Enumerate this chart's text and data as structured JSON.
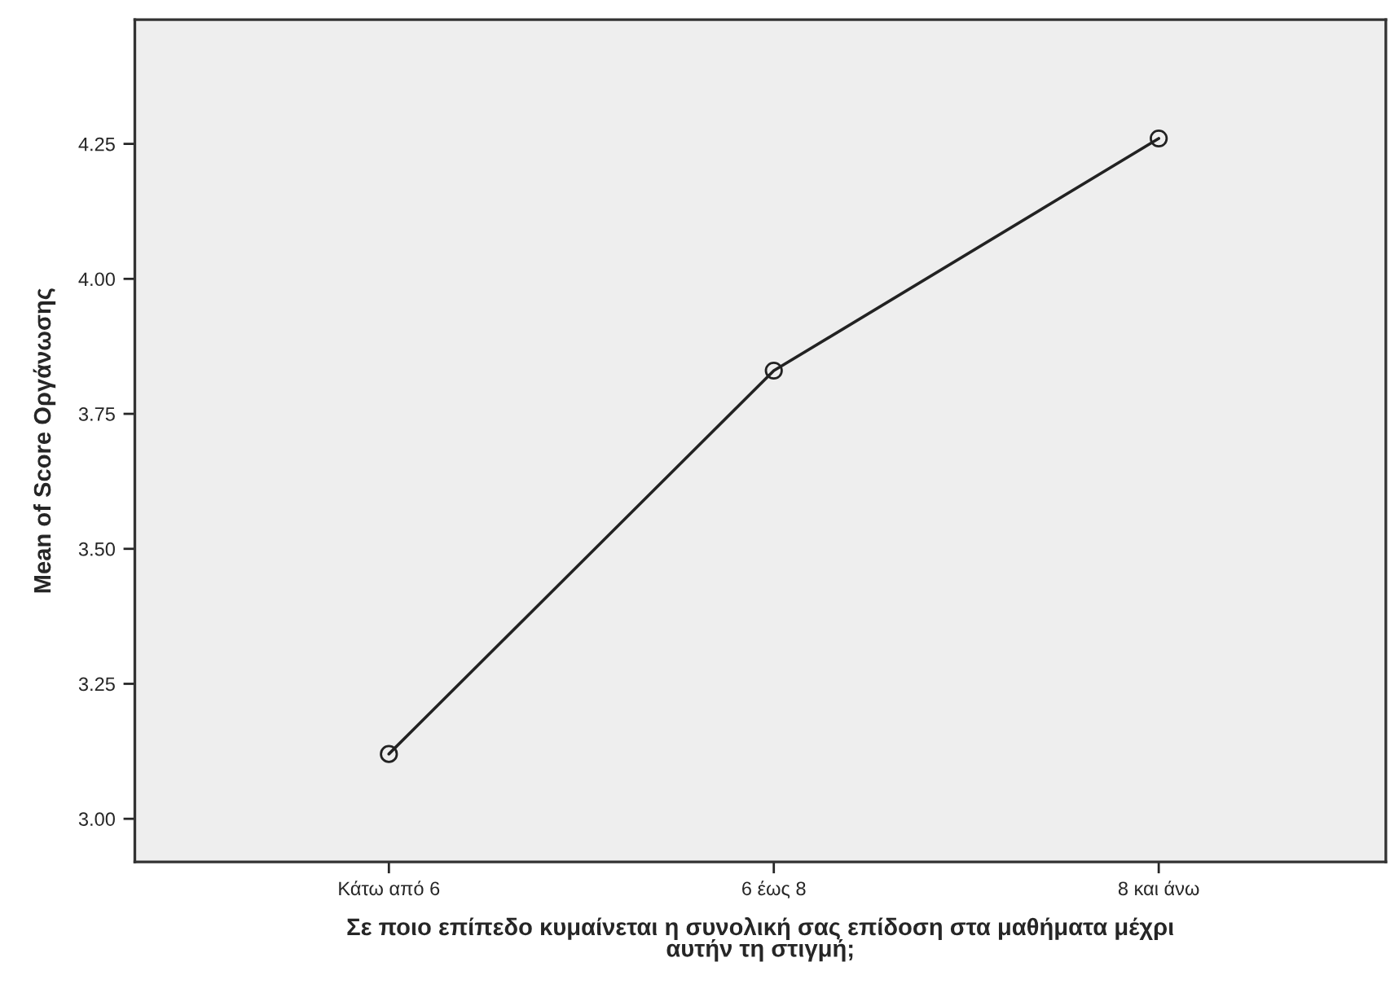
{
  "chart_data": {
    "type": "line",
    "xlabel": "Σε ποιο επίπεδο κυμαίνεται η συνολική σας επίδοση στα μαθήματα μέχρι\nαυτήν τη στιγμή;",
    "ylabel": "Mean of Score Οργάνωσης",
    "categories": [
      "Κάτω από 6",
      "6 έως 8",
      "8 και άνω"
    ],
    "series": [
      {
        "color": "#222222",
        "values": [
          3.12,
          3.83,
          4.26
        ]
      }
    ],
    "ylim": [
      2.92,
      4.48
    ],
    "yticks": [
      {
        "value": 3.0,
        "label": "3.00"
      },
      {
        "value": 3.25,
        "label": "3.25"
      },
      {
        "value": 3.5,
        "label": "3.50"
      },
      {
        "value": 3.75,
        "label": "3.75"
      },
      {
        "value": 4.0,
        "label": "4.00"
      },
      {
        "value": 4.25,
        "label": "4.25"
      }
    ],
    "marker": "circle",
    "line_style": "solid",
    "grid": false
  }
}
